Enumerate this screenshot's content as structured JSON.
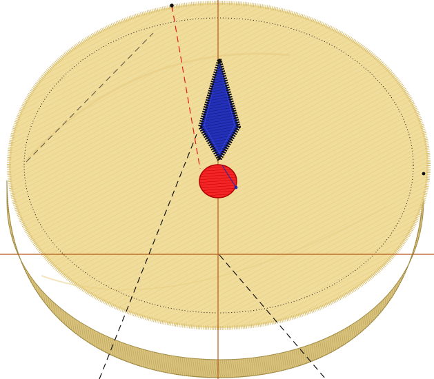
{
  "scene": {
    "background_color": "#ffffff",
    "disc_fill_color": "#f1dd9b",
    "disc_edge_color": "#ccb66a",
    "disc_dark_edge_color": "#a9944c",
    "outline_dotted_color": "#111111",
    "axis_color": "#b65a16",
    "guide_dashed_color": "#111111",
    "guide_red_color": "#e11b1b",
    "diamond_fill_color": "#1f2aa6",
    "diamond_edge_color": "#0d0d0d",
    "oval_fill_color": "#f21e1e",
    "oval_edge_color": "#b10000",
    "icons": [
      "handle-dot-icon",
      "diamond-shape-icon",
      "oval-shape-icon"
    ]
  }
}
